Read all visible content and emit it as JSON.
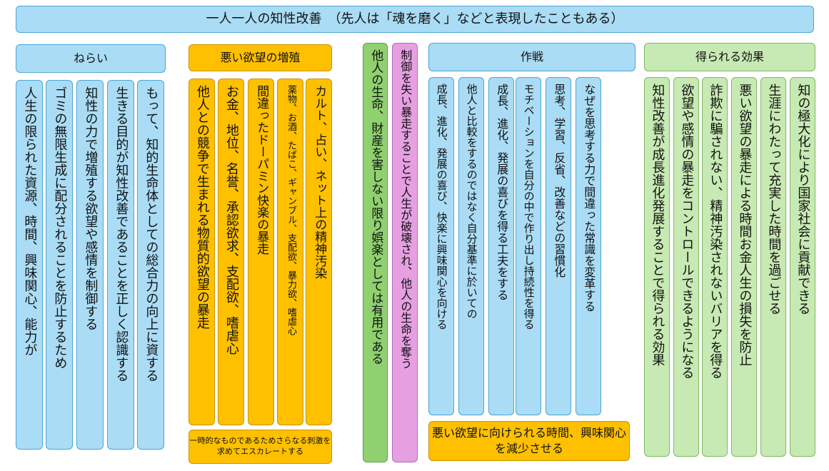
{
  "title": "一人一人の知性改善　（先人は「魂を磨く」などと表現したこともある）",
  "aim": {
    "header": "ねらい",
    "items": [
      "人生の限られた資源、時間、興味関心、能力が",
      "ゴミの無限生成に配分されることを防止するため",
      "知性の力で増殖する欲望や感情を制御する",
      "生きる目的が知性改善であることを正しく認識する",
      "もって、知的生命体としての総合力の向上に資する"
    ]
  },
  "bad_desires": {
    "header": "悪い欲望の増殖",
    "items": [
      "他人との競争で生まれる物質的欲望の暴走",
      "お金、地位、名誉、承認欲求、支配欲、嗜虐心",
      "間違ったドーパミン快楽の暴走",
      "薬物、お酒、たばこ、ギャンブル、支配欲、暴力欲、嗜虐心",
      "カルト、占い、ネット上の精神汚染"
    ],
    "note": "一時的なものであるためさらなる刺激を求めてエスカレートする"
  },
  "entertainment": "他人の生命、財産を害しない限り娯楽としては有用である",
  "runaway": "制御を失い暴走することで人生が破壊され、他人の生命を奪う",
  "strategy": {
    "header": "作戦",
    "items": [
      "成長、進化、発展の喜び、快楽に興味関心を向ける",
      "他人と比較をするのではなく自分基準に於いての",
      "成長、進化、発展の喜びを得る工夫をする",
      "モチベーションを自分の中で作り出し持続性を得る",
      "思考、学習、反省、改善などの習慣化",
      "なぜを思考する力で間違った常識を変革する"
    ],
    "note": "悪い欲望に向けられる時間、興味関心を減少させる"
  },
  "effects": {
    "header": "得られる効果",
    "items": [
      "知性改善が成長進化発展することで得られる効果",
      "欲望や感情の暴走をコントロールできるようになる",
      "詐欺に騙されない、精神汚染されないバリアを得る",
      "悪い欲望の暴走による時間お金人生の損失を防止",
      "生涯にわたって充実した時間を過ごせる",
      "知の極大化により国家社会に貢献できる"
    ]
  }
}
